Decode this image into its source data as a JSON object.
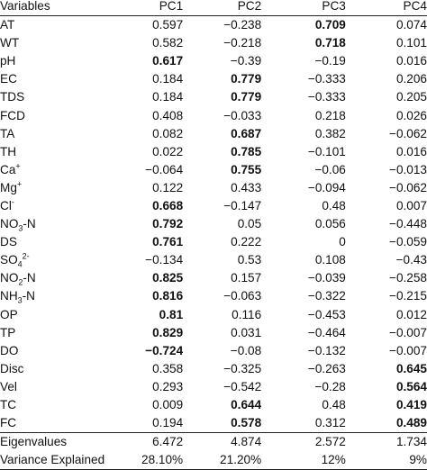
{
  "table": {
    "headers": [
      "Variables",
      "PC1",
      "PC2",
      "PC3",
      "PC4"
    ],
    "rows": [
      {
        "label": "AT",
        "values": [
          "0.597",
          "−0.238",
          "0.709",
          "0.074"
        ],
        "bold": [
          false,
          false,
          true,
          false
        ]
      },
      {
        "label": "WT",
        "values": [
          "0.582",
          "−0.218",
          "0.718",
          "0.101"
        ],
        "bold": [
          false,
          false,
          true,
          false
        ]
      },
      {
        "label": "pH",
        "values": [
          "0.617",
          "−0.39",
          "−0.19",
          "0.016"
        ],
        "bold": [
          true,
          false,
          false,
          false
        ]
      },
      {
        "label": "EC",
        "values": [
          "0.184",
          "0.779",
          "−0.333",
          "0.206"
        ],
        "bold": [
          false,
          true,
          false,
          false
        ]
      },
      {
        "label": "TDS",
        "values": [
          "0.184",
          "0.779",
          "−0.333",
          "0.205"
        ],
        "bold": [
          false,
          true,
          false,
          false
        ]
      },
      {
        "label": "FCD",
        "values": [
          "0.408",
          "−0.033",
          "0.218",
          "0.026"
        ],
        "bold": [
          false,
          false,
          false,
          false
        ]
      },
      {
        "label": "TA",
        "values": [
          "0.082",
          "0.687",
          "0.382",
          "−0.062"
        ],
        "bold": [
          false,
          true,
          false,
          false
        ]
      },
      {
        "label": "TH",
        "values": [
          "0.022",
          "0.785",
          "−0.101",
          "0.016"
        ],
        "bold": [
          false,
          true,
          false,
          false
        ]
      },
      {
        "label": "Ca",
        "sup": "+",
        "values": [
          "−0.064",
          "0.755",
          "−0.06",
          "−0.013"
        ],
        "bold": [
          false,
          true,
          false,
          false
        ]
      },
      {
        "label": "Mg",
        "sup": "+",
        "values": [
          "0.122",
          "0.433",
          "−0.094",
          "−0.062"
        ],
        "bold": [
          false,
          false,
          false,
          false
        ]
      },
      {
        "label": "Cl",
        "sup": "-",
        "values": [
          "0.668",
          "−0.147",
          "0.48",
          "0.007"
        ],
        "bold": [
          true,
          false,
          false,
          false
        ]
      },
      {
        "label": "NO",
        "sub": "3",
        "suffix": "-N",
        "values": [
          "0.792",
          "0.05",
          "0.056",
          "−0.448"
        ],
        "bold": [
          true,
          false,
          false,
          false
        ]
      },
      {
        "label": "DS",
        "values": [
          "0.761",
          "0.222",
          "0",
          "−0.059"
        ],
        "bold": [
          true,
          false,
          false,
          false
        ]
      },
      {
        "label": "SO",
        "sub": "4",
        "sup": "2-",
        "values": [
          "−0.134",
          "0.53",
          "0.108",
          "−0.43"
        ],
        "bold": [
          false,
          false,
          false,
          false
        ]
      },
      {
        "label": "NO",
        "sub": "2",
        "suffix": "-N",
        "values": [
          "0.825",
          "0.157",
          "−0.039",
          "−0.258"
        ],
        "bold": [
          true,
          false,
          false,
          false
        ]
      },
      {
        "label": "NH",
        "sub": "3",
        "suffix": "-N",
        "values": [
          "0.816",
          "−0.063",
          "−0.322",
          "−0.215"
        ],
        "bold": [
          true,
          false,
          false,
          false
        ]
      },
      {
        "label": "OP",
        "values": [
          "0.81",
          "0.116",
          "−0.453",
          "0.012"
        ],
        "bold": [
          true,
          false,
          false,
          false
        ]
      },
      {
        "label": "TP",
        "values": [
          "0.829",
          "0.031",
          "−0.464",
          "−0.007"
        ],
        "bold": [
          true,
          false,
          false,
          false
        ]
      },
      {
        "label": "DO",
        "values": [
          "−0.724",
          "−0.08",
          "−0.132",
          "−0.007"
        ],
        "bold": [
          true,
          false,
          false,
          false
        ]
      },
      {
        "label": "Disc",
        "values": [
          "0.358",
          "−0.325",
          "−0.263",
          "0.645"
        ],
        "bold": [
          false,
          false,
          false,
          true
        ]
      },
      {
        "label": "Vel",
        "values": [
          "0.293",
          "−0.542",
          "−0.28",
          "0.564"
        ],
        "bold": [
          false,
          false,
          false,
          true
        ]
      },
      {
        "label": "TC",
        "values": [
          "0.009",
          "0.644",
          "0.48",
          "0.419"
        ],
        "bold": [
          false,
          true,
          false,
          true
        ]
      },
      {
        "label": "FC",
        "values": [
          "0.194",
          "0.578",
          "0.312",
          "0.489"
        ],
        "bold": [
          false,
          true,
          false,
          true
        ]
      }
    ],
    "eigenvalues": {
      "label": "Eigenvalues",
      "values": [
        "6.472",
        "4.874",
        "2.572",
        "1.734"
      ]
    },
    "variance": {
      "label": "Variance Explained",
      "values": [
        "28.10%",
        "21.20%",
        "12%",
        "9%"
      ]
    }
  }
}
